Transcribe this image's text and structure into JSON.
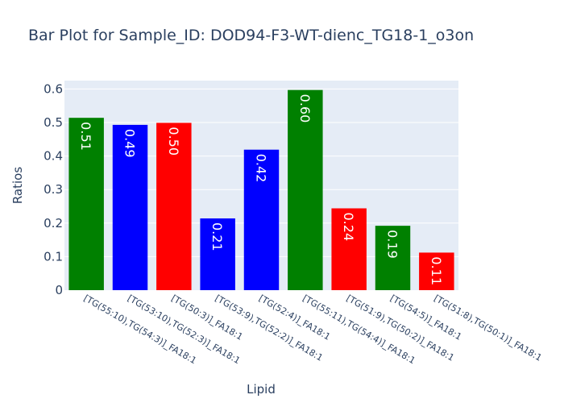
{
  "chart_data": {
    "type": "bar",
    "title": "Bar Plot for Sample_ID: DOD94-F3-WT-dienc_TG18-1_o3on",
    "xlabel": "Lipid",
    "ylabel": "Ratios",
    "ylim": [
      0,
      0.625
    ],
    "yticks": [
      "0",
      "0.1",
      "0.2",
      "0.3",
      "0.4",
      "0.5",
      "0.6"
    ],
    "ytick_values": [
      0,
      0.1,
      0.2,
      0.3,
      0.4,
      0.5,
      0.6
    ],
    "grid": true,
    "plot_background": "#e5ecf6",
    "categories": [
      "[TG(55:10),TG(54:3)]_FA18:1",
      "[TG(53:10),TG(52:3)]_FA18:1",
      "[TG(50:3)]_FA18:1",
      "[TG(53:9),TG(52:2)]_FA18:1",
      "[TG(52:4)]_FA18:1",
      "[TG(55:11),TG(54:4)]_FA18:1",
      "[TG(51:9),TG(50:2)]_FA18:1",
      "[TG(54:5)]_FA18:1",
      "[TG(51:8),TG(50:1)]_FA18:1"
    ],
    "values": [
      0.514,
      0.493,
      0.499,
      0.214,
      0.419,
      0.597,
      0.244,
      0.192,
      0.112
    ],
    "data_labels": [
      "0.51",
      "0.49",
      "0.50",
      "0.21",
      "0.42",
      "0.60",
      "0.24",
      "0.19",
      "0.11"
    ],
    "colors": [
      "#008000",
      "#0000ff",
      "#ff0000",
      "#0000ff",
      "#0000ff",
      "#008000",
      "#ff0000",
      "#008000",
      "#ff0000"
    ]
  }
}
